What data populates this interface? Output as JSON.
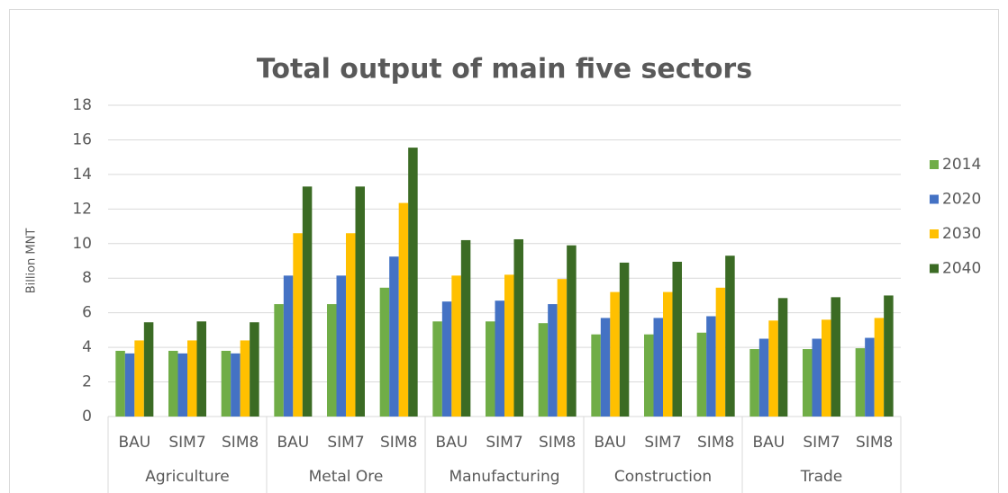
{
  "chart_data": {
    "type": "bar",
    "title": "Total output of main five sectors",
    "y_label": "Billion MNT",
    "categories": [
      "BAU",
      "SIM7",
      "SIM8",
      "BAU",
      "SIM7",
      "SIM8",
      "BAU",
      "SIM7",
      "SIM8",
      "BAU",
      "SIM7",
      "SIM8",
      "BAU",
      "SIM7",
      "SIM8"
    ],
    "groups": [
      "Agriculture",
      "Metal Ore",
      "Manufacturing",
      "Construction",
      "Trade"
    ],
    "series": [
      {
        "name": "2014",
        "color": "#70ad47",
        "values": [
          3.8,
          3.8,
          3.8,
          6.5,
          6.5,
          7.45,
          5.5,
          5.5,
          5.4,
          4.75,
          4.75,
          4.85,
          3.9,
          3.9,
          3.95
        ]
      },
      {
        "name": "2020",
        "color": "#4472c4",
        "values": [
          3.65,
          3.65,
          3.65,
          8.15,
          8.15,
          9.25,
          6.65,
          6.7,
          6.5,
          5.7,
          5.7,
          5.8,
          4.5,
          4.5,
          4.55
        ]
      },
      {
        "name": "2030",
        "color": "#ffc000",
        "values": [
          4.4,
          4.4,
          4.4,
          10.6,
          10.6,
          12.35,
          8.15,
          8.2,
          7.95,
          7.2,
          7.2,
          7.45,
          5.55,
          5.6,
          5.7
        ]
      },
      {
        "name": "2040",
        "color": "#3b6b24",
        "values": [
          5.45,
          5.5,
          5.45,
          13.3,
          13.3,
          15.55,
          10.2,
          10.25,
          9.9,
          8.9,
          8.95,
          9.3,
          6.85,
          6.9,
          7.0
        ]
      }
    ],
    "ylim": [
      0,
      18
    ],
    "yticks": [
      0,
      2,
      4,
      6,
      8,
      10,
      12,
      14,
      16,
      18
    ],
    "grid": true,
    "legend": "right"
  }
}
